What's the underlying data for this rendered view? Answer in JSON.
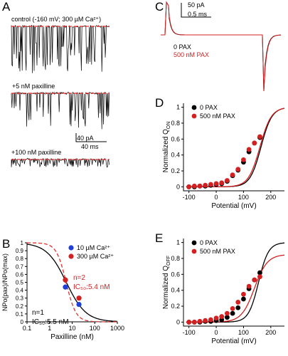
{
  "panels": {
    "A": {
      "letter": "A",
      "trace_labels": [
        "control (-160 mV; 300 µM Ca²⁺)",
        "+5 nM paxilline",
        "+100 nM paxilline"
      ],
      "scale_bar": {
        "y_label": "40 pA",
        "x_label": "40 ms"
      }
    },
    "B": {
      "letter": "B"
    },
    "C": {
      "letter": "C",
      "scale_bar": {
        "y_label": "50 pA",
        "x_label": "0.5 ms"
      },
      "legend": [
        "0 PAX",
        "500 nM PAX"
      ]
    },
    "D": {
      "letter": "D"
    },
    "E": {
      "letter": "E"
    }
  },
  "colors": {
    "black": "#000000",
    "red": "#d42020",
    "blue": "#1f3fd6",
    "dash": "#e23030"
  },
  "chart_data": [
    {
      "id": "B",
      "type": "scatter",
      "xlabel": "Paxilline (nM)",
      "ylabel": "NPo(pax)/NPo(max)",
      "xscale": "log",
      "xlim": [
        0.1,
        1000
      ],
      "ylim": [
        0,
        1
      ],
      "x_ticks": [
        "0.1",
        "1",
        "10",
        "100",
        "1000"
      ],
      "y_ticks": [
        "0",
        "0.1",
        "0.2",
        "0.3",
        "0.4",
        "0.5",
        "0.6",
        "0.7",
        "0.8",
        "0.9",
        "1"
      ],
      "legend": [
        "10 µM Ca²⁺",
        "300 µM Ca²⁺"
      ],
      "annotations": [
        {
          "line1": "n=2",
          "line2": "IC₅₀:5.4 nM",
          "color": "red"
        },
        {
          "line1": "n=1",
          "line2": "IC₅₀:5.5 nM",
          "color": "black"
        }
      ],
      "series": [
        {
          "name": "10 µM Ca²⁺",
          "color": "blue",
          "x": [
            5,
            20
          ],
          "y": [
            0.44,
            0.22
          ],
          "err": [
            0.02,
            0.02
          ]
        },
        {
          "name": "300 µM Ca²⁺",
          "color": "red",
          "x": [
            5,
            20
          ],
          "y": [
            0.53,
            0.3
          ],
          "err": [
            0.04,
            0.03
          ]
        }
      ],
      "fits": [
        {
          "color": "black",
          "style": "solid",
          "ic50": 5.5,
          "hill": 1
        },
        {
          "color": "red",
          "style": "dashed",
          "ic50": 5.4,
          "hill": 2
        }
      ]
    },
    {
      "id": "D",
      "type": "scatter",
      "xlabel": "Potential (mV)",
      "ylabel": "Normalized Q",
      "ylabel_sub": "ON",
      "xlim": [
        -120,
        250
      ],
      "ylim": [
        -0.05,
        1.05
      ],
      "x_ticks": [
        "-100",
        "0",
        "100",
        "200"
      ],
      "y_ticks": [
        "0",
        "0.2",
        "0.4",
        "0.6",
        "0.8",
        "1"
      ],
      "legend": [
        "0 PAX",
        "500 nM PAX"
      ],
      "series": [
        {
          "name": "0 PAX",
          "color": "black",
          "x": [
            -100,
            -80,
            -60,
            -40,
            -20,
            0,
            20,
            40,
            60,
            80,
            100,
            120,
            140,
            160
          ],
          "y": [
            0.0,
            0.0,
            0.01,
            0.01,
            0.02,
            0.03,
            0.04,
            0.07,
            0.14,
            0.21,
            0.31,
            0.44,
            0.55,
            0.62
          ]
        },
        {
          "name": "500 nM PAX",
          "color": "red",
          "x": [
            -100,
            -80,
            -60,
            -40,
            -20,
            0,
            20,
            40,
            60,
            80,
            100,
            120,
            140,
            160
          ],
          "y": [
            0.0,
            0.01,
            0.01,
            0.02,
            0.03,
            0.04,
            0.05,
            0.08,
            0.15,
            0.22,
            0.34,
            0.47,
            0.55,
            0.63
          ]
        }
      ],
      "fits": [
        {
          "color": "black",
          "v_half": 164,
          "slope": 44
        },
        {
          "color": "red",
          "v_half": 160,
          "slope": 46
        }
      ]
    },
    {
      "id": "E",
      "type": "scatter",
      "xlabel": "Potential (mV)",
      "ylabel": "Normalized Q",
      "ylabel_sub": "OFF",
      "xlim": [
        -120,
        250
      ],
      "ylim": [
        -0.05,
        1.05
      ],
      "x_ticks": [
        "-100",
        "0",
        "100",
        "200"
      ],
      "y_ticks": [
        "0",
        "0.2",
        "0.4",
        "0.6",
        "0.8",
        "1"
      ],
      "legend": [
        "0 PAX",
        "500 nM PAX"
      ],
      "series": [
        {
          "name": "0 PAX",
          "color": "black",
          "x": [
            -100,
            -80,
            -60,
            -40,
            -20,
            0,
            20,
            40,
            60,
            80,
            100,
            120,
            140,
            160
          ],
          "y": [
            0.0,
            0.0,
            0.0,
            0.01,
            0.01,
            0.02,
            0.03,
            0.06,
            0.11,
            0.18,
            0.29,
            0.42,
            0.53,
            0.62
          ]
        },
        {
          "name": "500 nM PAX",
          "color": "red",
          "x": [
            -100,
            -80,
            -60,
            -40,
            -20,
            0,
            20,
            40,
            60,
            80,
            100,
            120,
            140,
            160
          ],
          "y": [
            0.0,
            0.0,
            0.01,
            0.02,
            0.03,
            0.05,
            0.07,
            0.11,
            0.17,
            0.25,
            0.35,
            0.45,
            0.53,
            0.57
          ]
        }
      ],
      "fits": [
        {
          "color": "black",
          "v_half": 155,
          "slope": 40
        },
        {
          "color": "red",
          "v_half": 140,
          "slope": 52,
          "amp": 0.85
        }
      ]
    }
  ]
}
